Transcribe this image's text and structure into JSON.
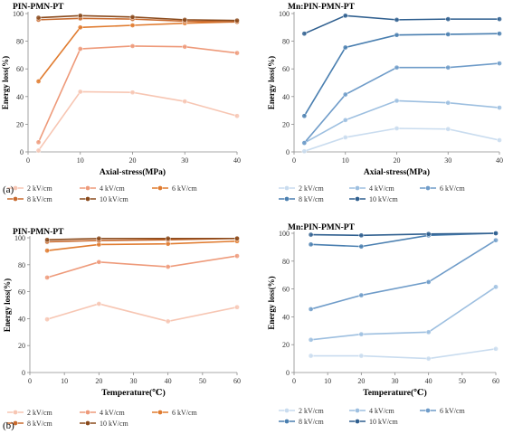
{
  "figure": {
    "panel_labels": [
      "(a)",
      "(b)"
    ]
  },
  "chart_data": [
    {
      "type": "line",
      "title": "PIN-PMN-PT",
      "xlabel": "Axial-stress(MPa)",
      "ylabel": "Energy loss(%)",
      "xlim": [
        0,
        40
      ],
      "ylim": [
        0,
        100
      ],
      "xticks": [
        0,
        10,
        20,
        30,
        40
      ],
      "yticks": [
        0,
        20,
        40,
        60,
        80,
        100
      ],
      "x": [
        2,
        10,
        20,
        30,
        40
      ],
      "grid": false,
      "legend_position": "bottom",
      "series": [
        {
          "name": "2 kV/cm",
          "color": "#f7c6b3",
          "values": [
            1,
            43.5,
            43,
            36.5,
            26
          ]
        },
        {
          "name": "4 kV/cm",
          "color": "#ee9a7a",
          "values": [
            7,
            74.5,
            76.5,
            76,
            71.5
          ]
        },
        {
          "name": "6 kV/cm",
          "color": "#e07b2f",
          "values": [
            51,
            90,
            91.5,
            93,
            94
          ]
        },
        {
          "name": "8 kV/cm",
          "color": "#c86a2e",
          "values": [
            95.5,
            96.5,
            96,
            94.5,
            94
          ]
        },
        {
          "name": "10 kV/cm",
          "color": "#8a4a1c",
          "values": [
            97,
            98.5,
            97.5,
            95.5,
            95
          ]
        }
      ]
    },
    {
      "type": "line",
      "title": "Mn:PIN-PMN-PT",
      "xlabel": "Axial-stress(MPa)",
      "ylabel": "Energy loss(%)",
      "xlim": [
        0,
        40
      ],
      "ylim": [
        0,
        100
      ],
      "xticks": [
        0,
        10,
        20,
        30,
        40
      ],
      "yticks": [
        0,
        20,
        40,
        60,
        80,
        100
      ],
      "x": [
        2,
        10,
        20,
        30,
        40
      ],
      "grid": false,
      "legend_position": "bottom",
      "series": [
        {
          "name": "2 kV/cm",
          "color": "#c9dcef",
          "values": [
            0.5,
            10.5,
            17,
            16.5,
            8.5
          ]
        },
        {
          "name": "4 kV/cm",
          "color": "#9dbfe0",
          "values": [
            6.5,
            23,
            37,
            35.5,
            32
          ]
        },
        {
          "name": "6 kV/cm",
          "color": "#6f9cc9",
          "values": [
            6.5,
            41.5,
            61,
            61,
            64
          ]
        },
        {
          "name": "8 kV/cm",
          "color": "#4a7fb0",
          "values": [
            26,
            75.5,
            84.5,
            85,
            85.5
          ]
        },
        {
          "name": "10 kV/cm",
          "color": "#2f5f8f",
          "values": [
            85.5,
            98.5,
            95.5,
            96,
            96
          ]
        }
      ]
    },
    {
      "type": "line",
      "title": "PIN-PMN-PT",
      "xlabel": "Temperature(℃)",
      "ylabel": "Energy loss(%)",
      "xlim": [
        0,
        60
      ],
      "ylim": [
        0,
        100
      ],
      "xticks": [
        0,
        10,
        20,
        30,
        40,
        50,
        60
      ],
      "yticks": [
        0,
        20,
        40,
        60,
        80,
        100
      ],
      "x": [
        5,
        20,
        40,
        60
      ],
      "grid": false,
      "legend_position": "bottom",
      "series": [
        {
          "name": "2 kV/cm",
          "color": "#f7c6b3",
          "values": [
            39.5,
            51,
            38,
            48.5
          ]
        },
        {
          "name": "4 kV/cm",
          "color": "#ee9a7a",
          "values": [
            70.5,
            82,
            78.5,
            86.5
          ]
        },
        {
          "name": "6 kV/cm",
          "color": "#e07b2f",
          "values": [
            90.5,
            95,
            95.5,
            97.5
          ]
        },
        {
          "name": "8 kV/cm",
          "color": "#c86a2e",
          "values": [
            97,
            98,
            98.5,
            99.5
          ]
        },
        {
          "name": "10 kV/cm",
          "color": "#8a4a1c",
          "values": [
            98.5,
            99.5,
            99.5,
            99.5
          ]
        }
      ]
    },
    {
      "type": "line",
      "title": "Mn:PIN-PMN-PT",
      "xlabel": "Temperature(℃)",
      "ylabel": "Energy loss(%)",
      "xlim": [
        0,
        60
      ],
      "ylim": [
        0,
        100
      ],
      "xticks": [
        0,
        10,
        20,
        30,
        40,
        50,
        60
      ],
      "yticks": [
        0,
        20,
        40,
        60,
        80,
        100
      ],
      "x": [
        5,
        20,
        40,
        60
      ],
      "grid": false,
      "legend_position": "bottom",
      "series": [
        {
          "name": "2 kV/cm",
          "color": "#c9dcef",
          "values": [
            12,
            12,
            10,
            17
          ]
        },
        {
          "name": "4 kV/cm",
          "color": "#9dbfe0",
          "values": [
            23.5,
            27.5,
            29,
            61.5
          ]
        },
        {
          "name": "6 kV/cm",
          "color": "#6f9cc9",
          "values": [
            45.5,
            55.5,
            65,
            95
          ]
        },
        {
          "name": "8 kV/cm",
          "color": "#4a7fb0",
          "values": [
            92,
            90.5,
            98.5,
            100
          ]
        },
        {
          "name": "10 kV/cm",
          "color": "#2f5f8f",
          "values": [
            99,
            98.5,
            99.5,
            100
          ]
        }
      ]
    }
  ]
}
